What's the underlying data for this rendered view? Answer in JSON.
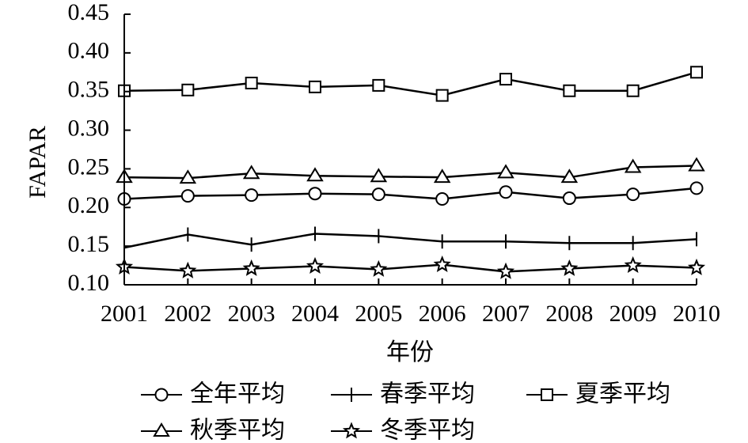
{
  "chart_data": {
    "type": "line",
    "title": "",
    "xlabel": "年份",
    "ylabel": "FAPAR",
    "categories": [
      "2001",
      "2002",
      "2003",
      "2004",
      "2005",
      "2006",
      "2007",
      "2008",
      "2009",
      "2010"
    ],
    "yticks": [
      "0.10",
      "0.15",
      "0.20",
      "0.25",
      "0.30",
      "0.35",
      "0.40",
      "0.45"
    ],
    "ylim": [
      0.1,
      0.45
    ],
    "grid": false,
    "legend_position": "bottom",
    "series": [
      {
        "name": "全年平均",
        "marker": "circle",
        "values": [
          0.211,
          0.215,
          0.216,
          0.218,
          0.217,
          0.211,
          0.22,
          0.212,
          0.217,
          0.225
        ]
      },
      {
        "name": "春季平均",
        "marker": "plus",
        "values": [
          0.148,
          0.165,
          0.152,
          0.166,
          0.163,
          0.156,
          0.156,
          0.154,
          0.154,
          0.159
        ]
      },
      {
        "name": "夏季平均",
        "marker": "square",
        "values": [
          0.351,
          0.352,
          0.361,
          0.356,
          0.358,
          0.345,
          0.366,
          0.351,
          0.351,
          0.375
        ]
      },
      {
        "name": "秋季平均",
        "marker": "triangle",
        "values": [
          0.239,
          0.238,
          0.244,
          0.241,
          0.24,
          0.239,
          0.245,
          0.239,
          0.252,
          0.254
        ]
      },
      {
        "name": "冬季平均",
        "marker": "star",
        "values": [
          0.123,
          0.118,
          0.121,
          0.124,
          0.12,
          0.126,
          0.117,
          0.121,
          0.125,
          0.122
        ]
      }
    ]
  }
}
